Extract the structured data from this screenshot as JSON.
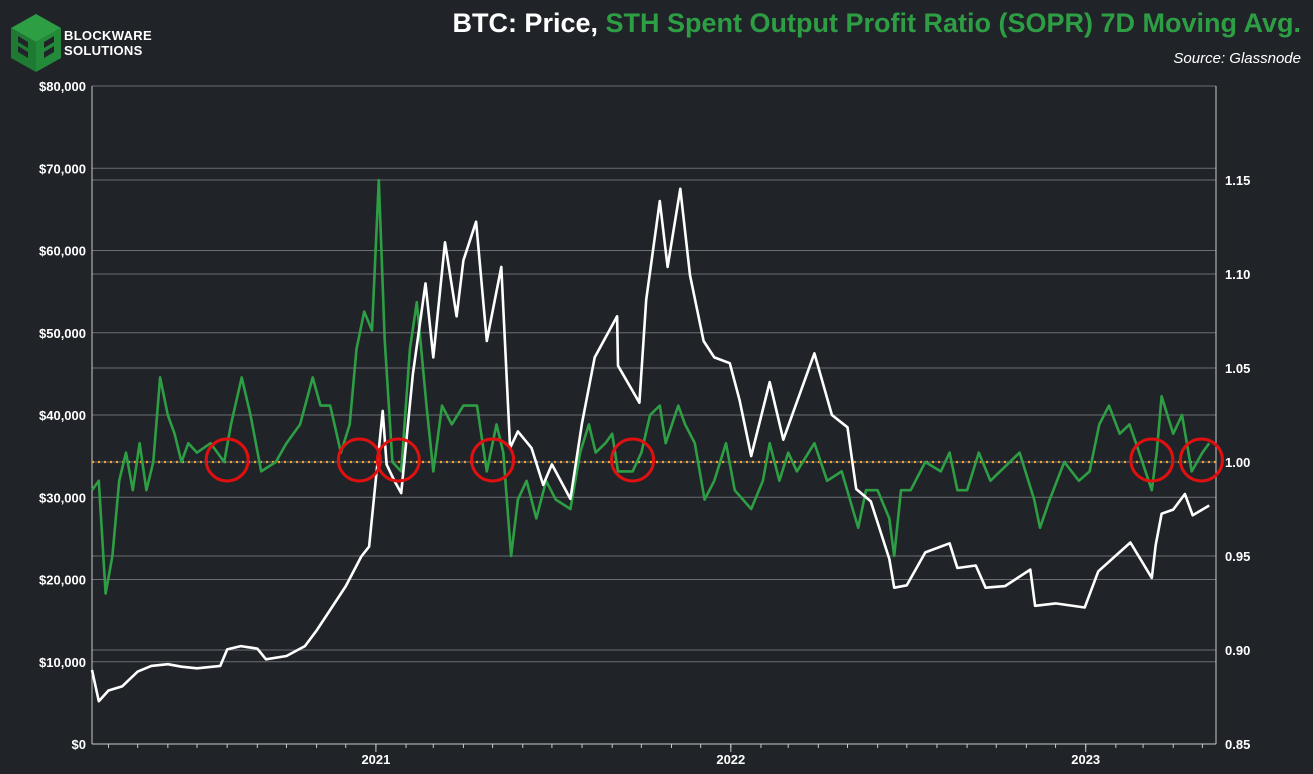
{
  "header": {
    "brand_line1": "BLOCKWARE",
    "brand_line2": "SOLUTIONS",
    "title_part1": "BTC: Price,",
    "title_part2": "STH Spent Output Profit Ratio (SOPR) 7D Moving Avg.",
    "source": "Source: Glassnode"
  },
  "colors": {
    "background": "#202428",
    "price": "#ffffff",
    "sopr": "#2e9e45",
    "reference": "#f0a030",
    "markers": "#e01010",
    "grid": "#6a6e72"
  },
  "icons": {
    "logo": "blockware-cube-logo"
  },
  "chart_data": {
    "type": "line",
    "x_axis": {
      "range": [
        "2020-03-15",
        "2023-05-15"
      ],
      "ticks": [
        "2021",
        "2022",
        "2023"
      ],
      "tick_dates": [
        "2021-01-01",
        "2022-01-01",
        "2023-01-01"
      ]
    },
    "y_left": {
      "range": [
        0,
        80000
      ],
      "ticks": [
        "$0",
        "$10,000",
        "$20,000",
        "$30,000",
        "$40,000",
        "$50,000",
        "$60,000",
        "$70,000",
        "$80,000"
      ],
      "tick_values": [
        0,
        10000,
        20000,
        30000,
        40000,
        50000,
        60000,
        70000,
        80000
      ]
    },
    "y_right": {
      "range": [
        0.85,
        1.2
      ],
      "ticks": [
        "0.85",
        "0.90",
        "0.95",
        "1.00",
        "1.05",
        "1.10",
        "1.15"
      ],
      "tick_values": [
        0.85,
        0.9,
        0.95,
        1.0,
        1.05,
        1.1,
        1.15
      ]
    },
    "grid": true,
    "reference_line": {
      "axis": "right",
      "value": 1.0,
      "style": "dotted"
    },
    "series": [
      {
        "axis": "left",
        "points": [
          [
            "2020-03-15",
            9000
          ],
          [
            "2020-03-22",
            5200
          ],
          [
            "2020-04-01",
            6500
          ],
          [
            "2020-04-15",
            7000
          ],
          [
            "2020-05-01",
            8800
          ],
          [
            "2020-05-15",
            9500
          ],
          [
            "2020-06-01",
            9700
          ],
          [
            "2020-06-15",
            9400
          ],
          [
            "2020-07-01",
            9200
          ],
          [
            "2020-07-25",
            9500
          ],
          [
            "2020-08-01",
            11500
          ],
          [
            "2020-08-15",
            11900
          ],
          [
            "2020-09-01",
            11600
          ],
          [
            "2020-09-10",
            10300
          ],
          [
            "2020-10-01",
            10700
          ],
          [
            "2020-10-20",
            11900
          ],
          [
            "2020-11-01",
            13800
          ],
          [
            "2020-11-15",
            16300
          ],
          [
            "2020-12-01",
            19200
          ],
          [
            "2020-12-17",
            22800
          ],
          [
            "2020-12-25",
            24000
          ],
          [
            "2021-01-08",
            40500
          ],
          [
            "2021-01-12",
            34000
          ],
          [
            "2021-01-20",
            32000
          ],
          [
            "2021-01-27",
            30500
          ],
          [
            "2021-02-08",
            45000
          ],
          [
            "2021-02-21",
            56000
          ],
          [
            "2021-03-01",
            47000
          ],
          [
            "2021-03-13",
            61000
          ],
          [
            "2021-03-25",
            52000
          ],
          [
            "2021-04-01",
            58800
          ],
          [
            "2021-04-14",
            63500
          ],
          [
            "2021-04-25",
            49000
          ],
          [
            "2021-05-10",
            58000
          ],
          [
            "2021-05-19",
            36000
          ],
          [
            "2021-05-27",
            38000
          ],
          [
            "2021-06-10",
            36000
          ],
          [
            "2021-06-22",
            31500
          ],
          [
            "2021-07-01",
            34000
          ],
          [
            "2021-07-20",
            29800
          ],
          [
            "2021-08-01",
            39000
          ],
          [
            "2021-08-14",
            47000
          ],
          [
            "2021-09-06",
            52000
          ],
          [
            "2021-09-07",
            46000
          ],
          [
            "2021-09-29",
            41500
          ],
          [
            "2021-10-06",
            54000
          ],
          [
            "2021-10-20",
            66000
          ],
          [
            "2021-10-28",
            58000
          ],
          [
            "2021-11-10",
            67500
          ],
          [
            "2021-11-20",
            57000
          ],
          [
            "2021-12-04",
            49000
          ],
          [
            "2021-12-15",
            47000
          ],
          [
            "2021-12-31",
            46300
          ],
          [
            "2022-01-10",
            41800
          ],
          [
            "2022-01-22",
            35000
          ],
          [
            "2022-02-10",
            44000
          ],
          [
            "2022-02-24",
            37000
          ],
          [
            "2022-03-28",
            47500
          ],
          [
            "2022-04-15",
            40000
          ],
          [
            "2022-05-01",
            38500
          ],
          [
            "2022-05-10",
            31000
          ],
          [
            "2022-05-25",
            29500
          ],
          [
            "2022-06-13",
            22500
          ],
          [
            "2022-06-18",
            19000
          ],
          [
            "2022-07-01",
            19300
          ],
          [
            "2022-07-20",
            23300
          ],
          [
            "2022-08-14",
            24400
          ],
          [
            "2022-08-22",
            21400
          ],
          [
            "2022-09-10",
            21700
          ],
          [
            "2022-09-20",
            19000
          ],
          [
            "2022-10-10",
            19200
          ],
          [
            "2022-11-05",
            21200
          ],
          [
            "2022-11-10",
            16800
          ],
          [
            "2022-12-01",
            17100
          ],
          [
            "2022-12-31",
            16600
          ],
          [
            "2023-01-14",
            21000
          ],
          [
            "2023-02-16",
            24500
          ],
          [
            "2023-03-10",
            20200
          ],
          [
            "2023-03-14",
            24200
          ],
          [
            "2023-03-20",
            28000
          ],
          [
            "2023-04-01",
            28500
          ],
          [
            "2023-04-13",
            30400
          ],
          [
            "2023-04-21",
            27800
          ],
          [
            "2023-05-08",
            29000
          ]
        ]
      },
      {
        "axis": "right",
        "points": [
          [
            "2020-03-15",
            0.985
          ],
          [
            "2020-03-22",
            0.99
          ],
          [
            "2020-03-29",
            0.93
          ],
          [
            "2020-04-05",
            0.95
          ],
          [
            "2020-04-12",
            0.99
          ],
          [
            "2020-04-19",
            1.005
          ],
          [
            "2020-04-26",
            0.985
          ],
          [
            "2020-05-03",
            1.01
          ],
          [
            "2020-05-10",
            0.985
          ],
          [
            "2020-05-17",
            1.0
          ],
          [
            "2020-05-24",
            1.045
          ],
          [
            "2020-06-01",
            1.025
          ],
          [
            "2020-06-08",
            1.015
          ],
          [
            "2020-06-15",
            1.0
          ],
          [
            "2020-06-22",
            1.01
          ],
          [
            "2020-07-01",
            1.005
          ],
          [
            "2020-07-15",
            1.01
          ],
          [
            "2020-07-29",
            1.0
          ],
          [
            "2020-08-05",
            1.02
          ],
          [
            "2020-08-16",
            1.045
          ],
          [
            "2020-08-25",
            1.025
          ],
          [
            "2020-09-05",
            0.995
          ],
          [
            "2020-09-20",
            1.0
          ],
          [
            "2020-10-01",
            1.01
          ],
          [
            "2020-10-15",
            1.02
          ],
          [
            "2020-10-28",
            1.045
          ],
          [
            "2020-11-05",
            1.03
          ],
          [
            "2020-11-15",
            1.03
          ],
          [
            "2020-11-26",
            1.005
          ],
          [
            "2020-12-05",
            1.02
          ],
          [
            "2020-12-12",
            1.06
          ],
          [
            "2020-12-20",
            1.08
          ],
          [
            "2020-12-28",
            1.07
          ],
          [
            "2021-01-04",
            1.15
          ],
          [
            "2021-01-10",
            1.065
          ],
          [
            "2021-01-18",
            1.0
          ],
          [
            "2021-01-27",
            0.995
          ],
          [
            "2021-02-05",
            1.06
          ],
          [
            "2021-02-12",
            1.085
          ],
          [
            "2021-02-22",
            1.03
          ],
          [
            "2021-03-01",
            0.995
          ],
          [
            "2021-03-10",
            1.03
          ],
          [
            "2021-03-20",
            1.02
          ],
          [
            "2021-04-01",
            1.03
          ],
          [
            "2021-04-15",
            1.03
          ],
          [
            "2021-04-25",
            0.995
          ],
          [
            "2021-05-05",
            1.02
          ],
          [
            "2021-05-12",
            1.005
          ],
          [
            "2021-05-20",
            0.95
          ],
          [
            "2021-05-27",
            0.98
          ],
          [
            "2021-06-05",
            0.99
          ],
          [
            "2021-06-15",
            0.97
          ],
          [
            "2021-06-25",
            0.99
          ],
          [
            "2021-07-05",
            0.98
          ],
          [
            "2021-07-20",
            0.975
          ],
          [
            "2021-07-30",
            1.005
          ],
          [
            "2021-08-08",
            1.02
          ],
          [
            "2021-08-15",
            1.005
          ],
          [
            "2021-08-25",
            1.01
          ],
          [
            "2021-09-01",
            1.015
          ],
          [
            "2021-09-07",
            0.995
          ],
          [
            "2021-09-22",
            0.995
          ],
          [
            "2021-10-01",
            1.005
          ],
          [
            "2021-10-10",
            1.025
          ],
          [
            "2021-10-20",
            1.03
          ],
          [
            "2021-10-26",
            1.01
          ],
          [
            "2021-11-08",
            1.03
          ],
          [
            "2021-11-15",
            1.02
          ],
          [
            "2021-11-25",
            1.01
          ],
          [
            "2021-12-05",
            0.98
          ],
          [
            "2021-12-15",
            0.99
          ],
          [
            "2021-12-27",
            1.01
          ],
          [
            "2022-01-05",
            0.985
          ],
          [
            "2022-01-22",
            0.975
          ],
          [
            "2022-02-03",
            0.99
          ],
          [
            "2022-02-10",
            1.01
          ],
          [
            "2022-02-20",
            0.99
          ],
          [
            "2022-03-01",
            1.005
          ],
          [
            "2022-03-10",
            0.995
          ],
          [
            "2022-03-28",
            1.01
          ],
          [
            "2022-04-10",
            0.99
          ],
          [
            "2022-04-25",
            0.995
          ],
          [
            "2022-05-12",
            0.965
          ],
          [
            "2022-05-20",
            0.985
          ],
          [
            "2022-06-01",
            0.985
          ],
          [
            "2022-06-13",
            0.97
          ],
          [
            "2022-06-18",
            0.95
          ],
          [
            "2022-06-25",
            0.985
          ],
          [
            "2022-07-05",
            0.985
          ],
          [
            "2022-07-20",
            1.0
          ],
          [
            "2022-08-05",
            0.995
          ],
          [
            "2022-08-14",
            1.005
          ],
          [
            "2022-08-22",
            0.985
          ],
          [
            "2022-09-01",
            0.985
          ],
          [
            "2022-09-13",
            1.005
          ],
          [
            "2022-09-25",
            0.99
          ],
          [
            "2022-10-05",
            0.995
          ],
          [
            "2022-10-25",
            1.005
          ],
          [
            "2022-11-09",
            0.98
          ],
          [
            "2022-11-15",
            0.965
          ],
          [
            "2022-11-25",
            0.98
          ],
          [
            "2022-12-10",
            1.0
          ],
          [
            "2022-12-25",
            0.99
          ],
          [
            "2023-01-05",
            0.995
          ],
          [
            "2023-01-15",
            1.02
          ],
          [
            "2023-01-25",
            1.03
          ],
          [
            "2023-02-05",
            1.015
          ],
          [
            "2023-02-15",
            1.02
          ],
          [
            "2023-02-25",
            1.005
          ],
          [
            "2023-03-10",
            0.985
          ],
          [
            "2023-03-15",
            1.005
          ],
          [
            "2023-03-20",
            1.035
          ],
          [
            "2023-04-01",
            1.015
          ],
          [
            "2023-04-10",
            1.025
          ],
          [
            "2023-04-20",
            0.995
          ],
          [
            "2023-05-01",
            1.005
          ],
          [
            "2023-05-08",
            1.01
          ]
        ]
      }
    ],
    "markers": [
      "2020-08-01",
      "2020-12-15",
      "2021-01-24",
      "2021-05-01",
      "2021-09-22",
      "2023-03-10",
      "2023-04-30"
    ]
  }
}
